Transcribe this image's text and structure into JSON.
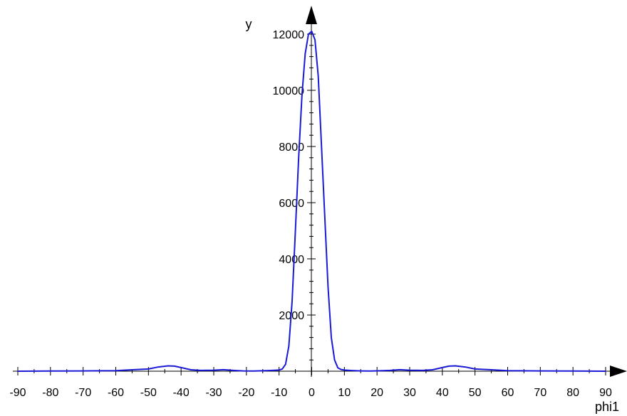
{
  "chart_data": {
    "type": "line",
    "title": "",
    "xlabel": "phi1",
    "ylabel": "y",
    "xlim": [
      -90,
      90
    ],
    "ylim": [
      0,
      12000
    ],
    "x_ticks": [
      -90,
      -80,
      -70,
      -60,
      -50,
      -40,
      -30,
      -20,
      -10,
      0,
      10,
      20,
      30,
      40,
      50,
      60,
      70,
      80,
      90
    ],
    "y_ticks": [
      2000,
      4000,
      6000,
      8000,
      10000,
      12000
    ],
    "grid": false,
    "line_color": "#1a1ad6",
    "series": [
      {
        "x": [
          -90,
          -80,
          -70,
          -60,
          -55,
          -50,
          -47,
          -44,
          -42,
          -40,
          -37,
          -34,
          -30,
          -27,
          -24,
          -21,
          -18,
          -15,
          -12,
          -10,
          -9,
          -8,
          -7,
          -6,
          -5,
          -4,
          -3,
          -2,
          -1,
          0,
          1,
          2,
          3,
          4,
          5,
          6,
          7,
          8,
          9,
          10,
          12,
          15,
          18,
          21,
          24,
          27,
          30,
          34,
          37,
          40,
          42,
          44,
          47,
          50,
          55,
          60,
          70,
          80,
          90
        ],
        "y": [
          0,
          5,
          10,
          20,
          50,
          80,
          150,
          190,
          180,
          130,
          50,
          30,
          35,
          55,
          30,
          10,
          5,
          15,
          30,
          40,
          80,
          250,
          900,
          2500,
          5000,
          7600,
          9800,
          11300,
          12000,
          12100,
          11800,
          10500,
          8000,
          5500,
          3000,
          1200,
          400,
          120,
          60,
          40,
          25,
          10,
          5,
          15,
          30,
          55,
          35,
          30,
          50,
          130,
          180,
          190,
          150,
          80,
          50,
          20,
          10,
          5,
          0
        ]
      }
    ]
  }
}
